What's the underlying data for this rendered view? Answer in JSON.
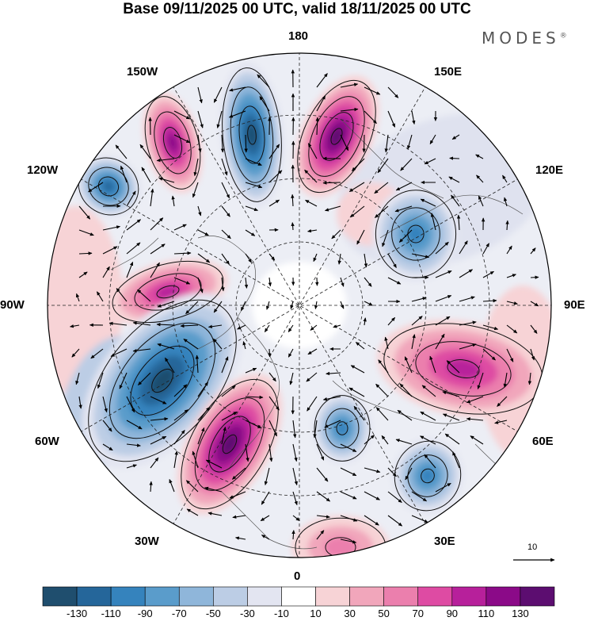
{
  "title": "Base 09/11/2025 00 UTC, valid 18/11/2025 00 UTC",
  "brand": "MODES",
  "brand_mark": "®",
  "longitude_labels": {
    "top": "180",
    "bottom": "0",
    "left": "90W",
    "right": "90E",
    "upper_left": "150W",
    "upper_right": "150E",
    "mid_upper_left": "120W",
    "mid_upper_right": "120E",
    "mid_lower_left": "60W",
    "mid_lower_right": "60E",
    "lower_left": "30W",
    "lower_right": "30E"
  },
  "vector_reference": {
    "value": "10"
  },
  "colorbar": {
    "ticks": [
      "-130",
      "-110",
      "-90",
      "-70",
      "-50",
      "-30",
      "-10",
      "10",
      "30",
      "50",
      "70",
      "90",
      "110",
      "130"
    ],
    "colors": [
      "#1f4e6e",
      "#25669a",
      "#3583bd",
      "#5a9ccb",
      "#8fb6da",
      "#bccde5",
      "#e3e5f1",
      "#ffffff",
      "#f7d3d6",
      "#f1a6bb",
      "#eb7fad",
      "#de4ba3",
      "#b7209b",
      "#8b0a88",
      "#5c0d70"
    ]
  },
  "anomaly_centers": [
    {
      "id": "bering-low",
      "value": -120
    },
    {
      "id": "east-siberia-high",
      "value": 120
    },
    {
      "id": "gulf-alaska-high",
      "value": 100
    },
    {
      "id": "pacific-nw-low",
      "value": -90
    },
    {
      "id": "canada-high",
      "value": 80
    },
    {
      "id": "labrador-low",
      "value": -120
    },
    {
      "id": "atlantic-high",
      "value": 110
    },
    {
      "id": "scandinavia-low",
      "value": -80
    },
    {
      "id": "europe-low",
      "value": -70
    },
    {
      "id": "siberia-high",
      "value": 70
    },
    {
      "id": "asia-low",
      "value": -70
    },
    {
      "id": "med-high",
      "value": 40
    }
  ]
}
